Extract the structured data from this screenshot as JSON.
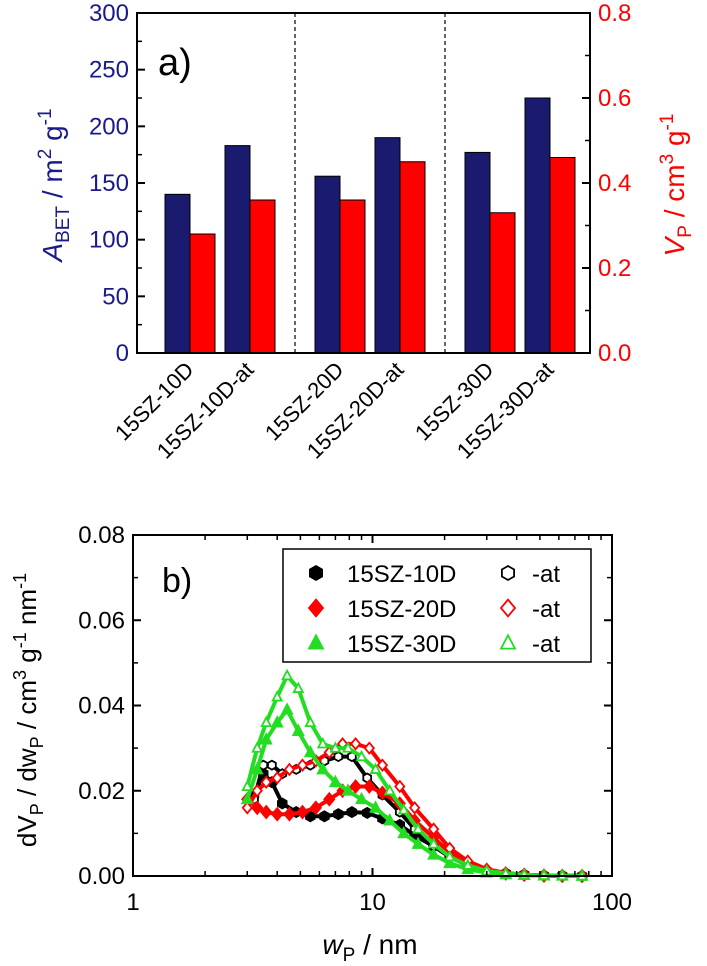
{
  "chart_data": [
    {
      "type": "bar",
      "panel_label": "a)",
      "categories": [
        "15SZ-10D",
        "15SZ-10D-at",
        "15SZ-20D",
        "15SZ-20D-at",
        "15SZ-30D",
        "15SZ-30D-at"
      ],
      "series": [
        {
          "name": "A_BET",
          "axis": "left",
          "color": "#1a1a6e",
          "values": [
            140,
            183,
            156,
            190,
            177,
            225
          ]
        },
        {
          "name": "V_P",
          "axis": "right",
          "color": "#ff0000",
          "values": [
            0.28,
            0.36,
            0.36,
            0.45,
            0.33,
            0.46
          ]
        }
      ],
      "ylabel_left": {
        "main": "A",
        "sub": "BET",
        "unit": " / m",
        "sup1": "2",
        "mid": " g",
        "sup2": "-1"
      },
      "ylabel_right": {
        "main": "V",
        "sub": "P",
        "unit": " / cm",
        "sup1": "3",
        "mid": " g",
        "sup2": "-1"
      },
      "ylim_left": [
        0,
        300
      ],
      "ylim_right": [
        0,
        0.8
      ],
      "yticks_left": [
        "0",
        "50",
        "100",
        "150",
        "200",
        "250",
        "300"
      ],
      "yticks_right": [
        "0.0",
        "0.2",
        "0.4",
        "0.6",
        "0.8"
      ],
      "left_axis_color": "#1a1a8c",
      "right_axis_color": "#ff0000",
      "group_separators": "dashed vertical lines between groups"
    },
    {
      "type": "line",
      "panel_label": "b)",
      "xscale": "log",
      "xlim": [
        1,
        100
      ],
      "ylim": [
        0,
        0.08
      ],
      "xticks": [
        "1",
        "10",
        "100"
      ],
      "yticks": [
        "0.00",
        "0.02",
        "0.04",
        "0.06",
        "0.08"
      ],
      "xlabel": {
        "main": "w",
        "sub": "P",
        "unit": " / nm"
      },
      "ylabel": {
        "p1": "dV",
        "s1": "P",
        "p2": " / dw",
        "s2": "P",
        "p3": " / cm",
        "sup1": "3",
        "p4": " g",
        "sup2": "-1",
        "p5": " nm",
        "sup3": "-1"
      },
      "legend_position": "top-right",
      "legend": [
        {
          "label": "15SZ-10D",
          "at_label": "-at",
          "color": "#000000",
          "marker": "hexagon"
        },
        {
          "label": "15SZ-20D",
          "at_label": "-at",
          "color": "#ff0000",
          "marker": "diamond"
        },
        {
          "label": "15SZ-30D",
          "at_label": "-at",
          "color": "#22dd22",
          "marker": "triangle"
        }
      ],
      "series": [
        {
          "name": "15SZ-10D",
          "color": "#000000",
          "marker": "hexagon",
          "filled": true,
          "x": [
            3.2,
            3.5,
            3.8,
            4.2,
            4.8,
            5.5,
            6.3,
            7.2,
            8.2,
            9.5,
            11,
            13,
            15,
            18,
            21,
            25,
            30,
            36,
            43,
            52,
            62,
            75
          ],
          "y": [
            0.019,
            0.024,
            0.022,
            0.017,
            0.015,
            0.014,
            0.014,
            0.0145,
            0.015,
            0.0148,
            0.0135,
            0.012,
            0.0095,
            0.007,
            0.0045,
            0.0025,
            0.0012,
            0.0006,
            0.0003,
            0.0001,
            5e-05,
            0.0
          ]
        },
        {
          "name": "15SZ-10D-at",
          "color": "#000000",
          "marker": "hexagon",
          "filled": false,
          "x": [
            3.2,
            3.5,
            3.8,
            4.2,
            4.8,
            5.5,
            6.3,
            7.2,
            8.2,
            9.5,
            11,
            13,
            15,
            18,
            21,
            25,
            30,
            36,
            43,
            52,
            62,
            75
          ],
          "y": [
            0.018,
            0.026,
            0.026,
            0.024,
            0.025,
            0.026,
            0.027,
            0.028,
            0.028,
            0.023,
            0.019,
            0.015,
            0.011,
            0.007,
            0.0045,
            0.0025,
            0.0012,
            0.0006,
            0.0003,
            0.0001,
            5e-05,
            0.0
          ]
        },
        {
          "name": "15SZ-20D",
          "color": "#ff0000",
          "marker": "diamond",
          "filled": true,
          "x": [
            3.0,
            3.3,
            3.6,
            4.0,
            4.5,
            5.1,
            5.8,
            6.6,
            7.5,
            8.5,
            9.7,
            11,
            13,
            15,
            18,
            21,
            25,
            30,
            36,
            43,
            52,
            62,
            75
          ],
          "y": [
            0.018,
            0.016,
            0.015,
            0.0145,
            0.0145,
            0.015,
            0.016,
            0.018,
            0.02,
            0.021,
            0.021,
            0.0195,
            0.017,
            0.013,
            0.009,
            0.0055,
            0.003,
            0.0014,
            0.0006,
            0.0003,
            0.0001,
            5e-05,
            0.0
          ]
        },
        {
          "name": "15SZ-20D-at",
          "color": "#ff0000",
          "marker": "diamond",
          "filled": false,
          "x": [
            3.0,
            3.3,
            3.6,
            4.0,
            4.5,
            5.1,
            5.8,
            6.6,
            7.5,
            8.5,
            9.7,
            11,
            13,
            15,
            18,
            21,
            25,
            30,
            36,
            43,
            52,
            62,
            75
          ],
          "y": [
            0.016,
            0.02,
            0.022,
            0.023,
            0.025,
            0.026,
            0.027,
            0.029,
            0.031,
            0.031,
            0.03,
            0.026,
            0.021,
            0.016,
            0.011,
            0.0065,
            0.0035,
            0.0016,
            0.0007,
            0.0003,
            0.0001,
            5e-05,
            0.0
          ]
        },
        {
          "name": "15SZ-30D",
          "color": "#22dd22",
          "marker": "triangle",
          "filled": true,
          "x": [
            3.0,
            3.3,
            3.6,
            4.0,
            4.4,
            4.9,
            5.5,
            6.2,
            7.0,
            7.9,
            9.0,
            10.3,
            11.8,
            13.5,
            15.5,
            18,
            21,
            25,
            30,
            36,
            43,
            52,
            62,
            75
          ],
          "y": [
            0.018,
            0.025,
            0.032,
            0.036,
            0.039,
            0.034,
            0.029,
            0.025,
            0.022,
            0.02,
            0.018,
            0.016,
            0.013,
            0.01,
            0.0075,
            0.005,
            0.003,
            0.0016,
            0.0008,
            0.0004,
            0.0002,
            0.0001,
            5e-05,
            0.0
          ]
        },
        {
          "name": "15SZ-30D-at",
          "color": "#22dd22",
          "marker": "triangle",
          "filled": false,
          "x": [
            3.0,
            3.3,
            3.6,
            4.0,
            4.4,
            4.9,
            5.5,
            6.2,
            7.0,
            7.9,
            9.0,
            10.3,
            11.8,
            13.5,
            15.5,
            18,
            21,
            25,
            30,
            36,
            43,
            52,
            62,
            75
          ],
          "y": [
            0.021,
            0.03,
            0.036,
            0.042,
            0.047,
            0.044,
            0.036,
            0.031,
            0.03,
            0.03,
            0.028,
            0.025,
            0.02,
            0.0155,
            0.011,
            0.0075,
            0.0045,
            0.0025,
            0.0012,
            0.0006,
            0.0003,
            0.0001,
            5e-05,
            0.0
          ]
        }
      ]
    }
  ]
}
